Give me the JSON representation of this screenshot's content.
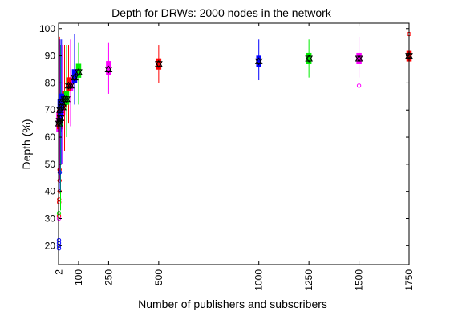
{
  "chart_data": {
    "type": "scatter",
    "title": "Depth for DRWs: 2000 nodes in the network",
    "xlabel": "Number of publishers and subscribers",
    "ylabel": "Depth (%)",
    "xlim": [
      0,
      1750
    ],
    "ylim": [
      13,
      102
    ],
    "x_ticks": [
      2,
      100,
      250,
      500,
      1000,
      1250,
      1500,
      1750
    ],
    "y_ticks": [
      20,
      30,
      40,
      50,
      60,
      70,
      80,
      90,
      100
    ],
    "grid": false,
    "legend": "none",
    "mean_marker": "black triangle and inverted triangle",
    "colors": {
      "red": "#ff0000",
      "green": "#00ee00",
      "blue": "#0000ff",
      "magenta": "#ff00ff",
      "black": "#000000"
    },
    "series": [
      {
        "color": "magenta",
        "points": [
          {
            "x": 2,
            "mean": 65,
            "q1": 62,
            "q3": 69,
            "lo": 30,
            "hi": 96
          },
          {
            "x": 20,
            "mean": 71,
            "q1": 68,
            "q3": 74,
            "lo": 50,
            "hi": 94
          },
          {
            "x": 60,
            "mean": 79,
            "q1": 77,
            "q3": 82,
            "lo": 64,
            "hi": 96
          },
          {
            "x": 250,
            "mean": 85,
            "q1": 83,
            "q3": 88,
            "lo": 76,
            "hi": 95
          },
          {
            "x": 1500,
            "mean": 89,
            "q1": 87,
            "q3": 91,
            "lo": 82,
            "hi": 97
          }
        ],
        "outliers": [
          {
            "x": 2,
            "y": 30
          },
          {
            "x": 1500,
            "y": 79
          }
        ]
      },
      {
        "color": "red",
        "points": [
          {
            "x": 5,
            "mean": 66,
            "q1": 63,
            "q3": 70,
            "lo": 44,
            "hi": 97
          },
          {
            "x": 30,
            "mean": 74,
            "q1": 71,
            "q3": 77,
            "lo": 55,
            "hi": 94
          },
          {
            "x": 50,
            "mean": 79,
            "q1": 77,
            "q3": 82,
            "lo": 65,
            "hi": 94
          },
          {
            "x": 500,
            "mean": 87,
            "q1": 85,
            "q3": 89,
            "lo": 80,
            "hi": 94
          },
          {
            "x": 1750,
            "mean": 90,
            "q1": 88,
            "q3": 92,
            "lo": 84,
            "hi": 96
          }
        ],
        "outliers": [
          {
            "x": 5,
            "y": 48
          },
          {
            "x": 5,
            "y": 44
          },
          {
            "x": 5,
            "y": 40
          },
          {
            "x": 3,
            "y": 37
          },
          {
            "x": 3,
            "y": 36
          },
          {
            "x": 2,
            "y": 31
          },
          {
            "x": 1750,
            "y": 98
          }
        ]
      },
      {
        "color": "green",
        "points": [
          {
            "x": 10,
            "mean": 67,
            "q1": 64,
            "q3": 71,
            "lo": 33,
            "hi": 94
          },
          {
            "x": 40,
            "mean": 74,
            "q1": 72,
            "q3": 77,
            "lo": 60,
            "hi": 94
          },
          {
            "x": 100,
            "mean": 84,
            "q1": 82,
            "q3": 87,
            "lo": 72,
            "hi": 95
          },
          {
            "x": 1250,
            "mean": 89,
            "q1": 87,
            "q3": 91,
            "lo": 82,
            "hi": 96
          }
        ],
        "outliers": [
          {
            "x": 2,
            "y": 32
          }
        ]
      },
      {
        "color": "blue",
        "points": [
          {
            "x": 8,
            "mean": 70,
            "q1": 66,
            "q3": 74,
            "lo": 40,
            "hi": 96
          },
          {
            "x": 15,
            "mean": 73,
            "q1": 70,
            "q3": 76,
            "lo": 50,
            "hi": 96
          },
          {
            "x": 80,
            "mean": 82,
            "q1": 80,
            "q3": 85,
            "lo": 72,
            "hi": 98
          },
          {
            "x": 1000,
            "mean": 88,
            "q1": 86,
            "q3": 90,
            "lo": 81,
            "hi": 96
          }
        ],
        "outliers": [
          {
            "x": 2,
            "y": 22
          },
          {
            "x": 2,
            "y": 21
          },
          {
            "x": 2,
            "y": 20
          },
          {
            "x": 2,
            "y": 19
          },
          {
            "x": 6,
            "y": 47
          }
        ]
      }
    ]
  }
}
